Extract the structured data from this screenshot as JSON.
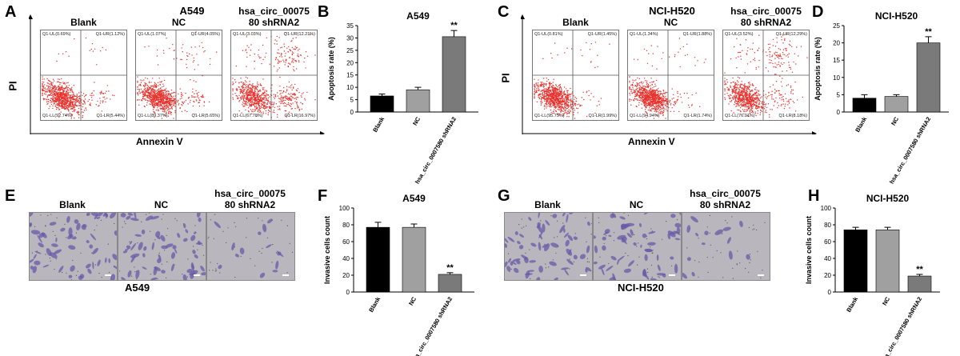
{
  "colors": {
    "dots": "#e8322d",
    "purple": "#6a5aa8",
    "bar_blank": "#000000",
    "bar_nc": "#a0a0a0",
    "bar_sh": "#7a7a7a"
  },
  "panels": {
    "A": {
      "letter": "A",
      "title": "A549",
      "ylabel": "PI",
      "xlabel": "Annexin V",
      "plots": [
        {
          "label": "Blank",
          "ul": "Q1-UL(0.69%)",
          "ur": "Q1-UR(1.12%)",
          "ll": "Q1-LL(92.74%)",
          "lr": "Q1-LR(5.44%)"
        },
        {
          "label": "NC",
          "ul": "Q1-UL(1.07%)",
          "ur": "Q1-UR(4.05%)",
          "ll": "Q1-LL(89.37%)",
          "lr": "Q1-LR(5.65%)"
        },
        {
          "label": "hsa_circ_00075\n80 shRNA2",
          "ul": "Q1-UL(3.03%)",
          "ur": "Q1-UR(12.21%)",
          "ll": "Q1-LL(67.78%)",
          "lr": "Q1-LR(16.97%)"
        }
      ]
    },
    "C": {
      "letter": "C",
      "title": "NCI-H520",
      "ylabel": "PI",
      "xlabel": "Annexin V",
      "plots": [
        {
          "label": "Blank",
          "ul": "Q1-UL(0.81%)",
          "ur": "Q1-UR(1.45%)",
          "ll": "Q1-LL(95.75%)",
          "lr": "Q1-LR(1.99%)"
        },
        {
          "label": "NC",
          "ul": "Q1-UL(1.34%)",
          "ur": "Q1-UR(1.88%)",
          "ll": "Q1-LL(94.94%)",
          "lr": "Q1-LR(1.74%)"
        },
        {
          "label": "hsa_circ_00075\n80 shRNA2",
          "ul": "Q1-UL(3.52%)",
          "ur": "Q1-UR(12.29%)",
          "ll": "Q1-LL(76.01%)",
          "lr": "Q1-LR(8.18%)"
        }
      ]
    },
    "E": {
      "letter": "E",
      "bottom": "A549",
      "labels": [
        "Blank",
        "NC",
        "hsa_circ_00075\n80 shRNA2"
      ]
    },
    "G": {
      "letter": "G",
      "bottom": "NCI-H520",
      "labels": [
        "Blank",
        "NC",
        "hsa_circ_00075\n80 shRNA2"
      ]
    }
  },
  "chart_data": [
    {
      "panel": "B",
      "type": "bar",
      "title": "A549",
      "ylabel": "Apoptosis rate (%)",
      "categories": [
        "Blank",
        "NC",
        "hsa_circ_0007580 shRNA2"
      ],
      "values": [
        6.5,
        9,
        30.5
      ],
      "errors": [
        0.8,
        1,
        2.5
      ],
      "ylim": [
        0,
        35
      ],
      "yticks": [
        0,
        5,
        10,
        15,
        20,
        25,
        30,
        35
      ],
      "annotations": [
        "",
        "",
        "**"
      ]
    },
    {
      "panel": "D",
      "type": "bar",
      "title": "NCI-H520",
      "ylabel": "Apoptosis rate (%)",
      "categories": [
        "Blank",
        "NC",
        "hsa_circ_0007580 shRNA2"
      ],
      "values": [
        4,
        4.5,
        20
      ],
      "errors": [
        1,
        0.5,
        1.8
      ],
      "ylim": [
        0,
        25
      ],
      "yticks": [
        0,
        5,
        10,
        15,
        20,
        25
      ],
      "annotations": [
        "",
        "",
        "**"
      ]
    },
    {
      "panel": "F",
      "type": "bar",
      "title": "A549",
      "ylabel": "Invasive cells count",
      "categories": [
        "Blank",
        "NC",
        "hsa_circ_0007580 shRNA2"
      ],
      "values": [
        77,
        77,
        21
      ],
      "errors": [
        6,
        4,
        2
      ],
      "ylim": [
        0,
        100
      ],
      "yticks": [
        0,
        20,
        40,
        60,
        80,
        100
      ],
      "annotations": [
        "",
        "",
        "**"
      ]
    },
    {
      "panel": "H",
      "type": "bar",
      "title": "NCI-H520",
      "ylabel": "Invasive cells count",
      "categories": [
        "Blank",
        "NC",
        "hsa_circ_0007580 shRNA2"
      ],
      "values": [
        74,
        74,
        19
      ],
      "errors": [
        3,
        3,
        2
      ],
      "ylim": [
        0,
        100
      ],
      "yticks": [
        0,
        20,
        40,
        60,
        80,
        100
      ],
      "annotations": [
        "",
        "",
        "**"
      ]
    }
  ]
}
